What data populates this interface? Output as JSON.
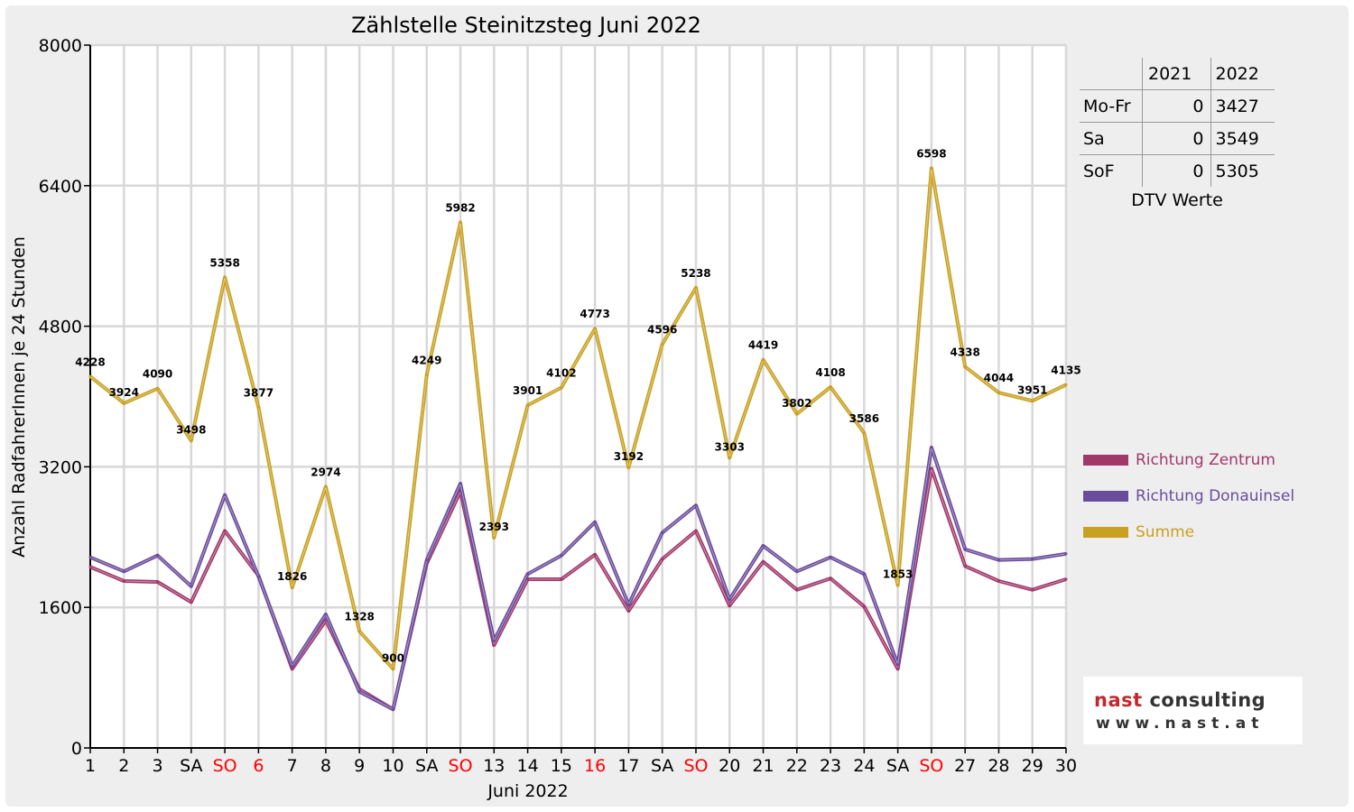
{
  "chart_data": {
    "type": "line",
    "title": "Zählstelle Steinitzsteg Juni 2022",
    "xlabel": "Juni 2022",
    "ylabel": "Anzahl RadfahrerInnen je 24 Stunden",
    "ylim": [
      0,
      8000
    ],
    "yticks": [
      "0",
      "1600",
      "3200",
      "4800",
      "6400",
      "8000"
    ],
    "grid": true,
    "legend_position": "right",
    "categories": [
      "1",
      "2",
      "3",
      "SA",
      "SO",
      "6",
      "7",
      "8",
      "9",
      "10",
      "SA",
      "SO",
      "13",
      "14",
      "15",
      "16",
      "17",
      "SA",
      "SO",
      "20",
      "21",
      "22",
      "23",
      "24",
      "SA",
      "SO",
      "27",
      "28",
      "29",
      "30"
    ],
    "category_colors": [
      "#000000",
      "#000000",
      "#000000",
      "#000000",
      "#ff0000",
      "#ff0000",
      "#000000",
      "#000000",
      "#000000",
      "#000000",
      "#000000",
      "#ff0000",
      "#000000",
      "#000000",
      "#000000",
      "#ff0000",
      "#000000",
      "#000000",
      "#ff0000",
      "#000000",
      "#000000",
      "#000000",
      "#000000",
      "#000000",
      "#000000",
      "#ff0000",
      "#000000",
      "#000000",
      "#000000",
      "#000000"
    ],
    "series": [
      {
        "name": "Richtung Zentrum",
        "color": "#a0386a",
        "values": [
          2060,
          1900,
          1890,
          1660,
          2470,
          1960,
          900,
          1450,
          670,
          440,
          2100,
          2920,
          1170,
          1920,
          1920,
          2200,
          1560,
          2150,
          2470,
          1620,
          2120,
          1800,
          1930,
          1610,
          900,
          3180,
          2070,
          1900,
          1800,
          1920
        ]
      },
      {
        "name": "Richtung Donauinsel",
        "color": "#6a4c9c",
        "values": [
          2170,
          2010,
          2190,
          1840,
          2880,
          1950,
          930,
          1520,
          640,
          440,
          2140,
          3010,
          1220,
          1980,
          2190,
          2570,
          1630,
          2450,
          2760,
          1690,
          2300,
          2010,
          2170,
          1980,
          950,
          3420,
          2260,
          2140,
          2150,
          2210
        ]
      },
      {
        "name": "Summe",
        "color": "#c9a020",
        "values": [
          4228,
          3924,
          4090,
          3498,
          5358,
          3877,
          1826,
          2974,
          1328,
          900,
          4249,
          5982,
          2393,
          3901,
          4102,
          4773,
          3192,
          4596,
          5238,
          3303,
          4419,
          3802,
          4108,
          3586,
          1853,
          6598,
          4338,
          4044,
          3951,
          4135
        ],
        "data_labels": [
          "4228",
          "3924",
          "4090",
          "3498",
          "5358",
          "3877",
          "1826",
          "2974",
          "1328",
          "900",
          "4249",
          "5982",
          "2393",
          "3901",
          "4102",
          "4773",
          "3192",
          "4596",
          "5238",
          "3303",
          "4419",
          "3802",
          "4108",
          "3586",
          "1853",
          "6598",
          "4338",
          "4044",
          "3951",
          "4135"
        ]
      }
    ]
  },
  "dtv_table": {
    "headers": [
      "",
      "2021",
      "2022"
    ],
    "rows": [
      {
        "label": "Mo-Fr",
        "v2021": "0",
        "v2022": "3427"
      },
      {
        "label": "Sa",
        "v2021": "0",
        "v2022": "3549"
      },
      {
        "label": "SoF",
        "v2021": "0",
        "v2022": "5305"
      }
    ],
    "caption": "DTV Werte"
  },
  "logo": {
    "name_part1": "nast",
    "name_part2": " consulting",
    "url": "www.nast.at"
  }
}
